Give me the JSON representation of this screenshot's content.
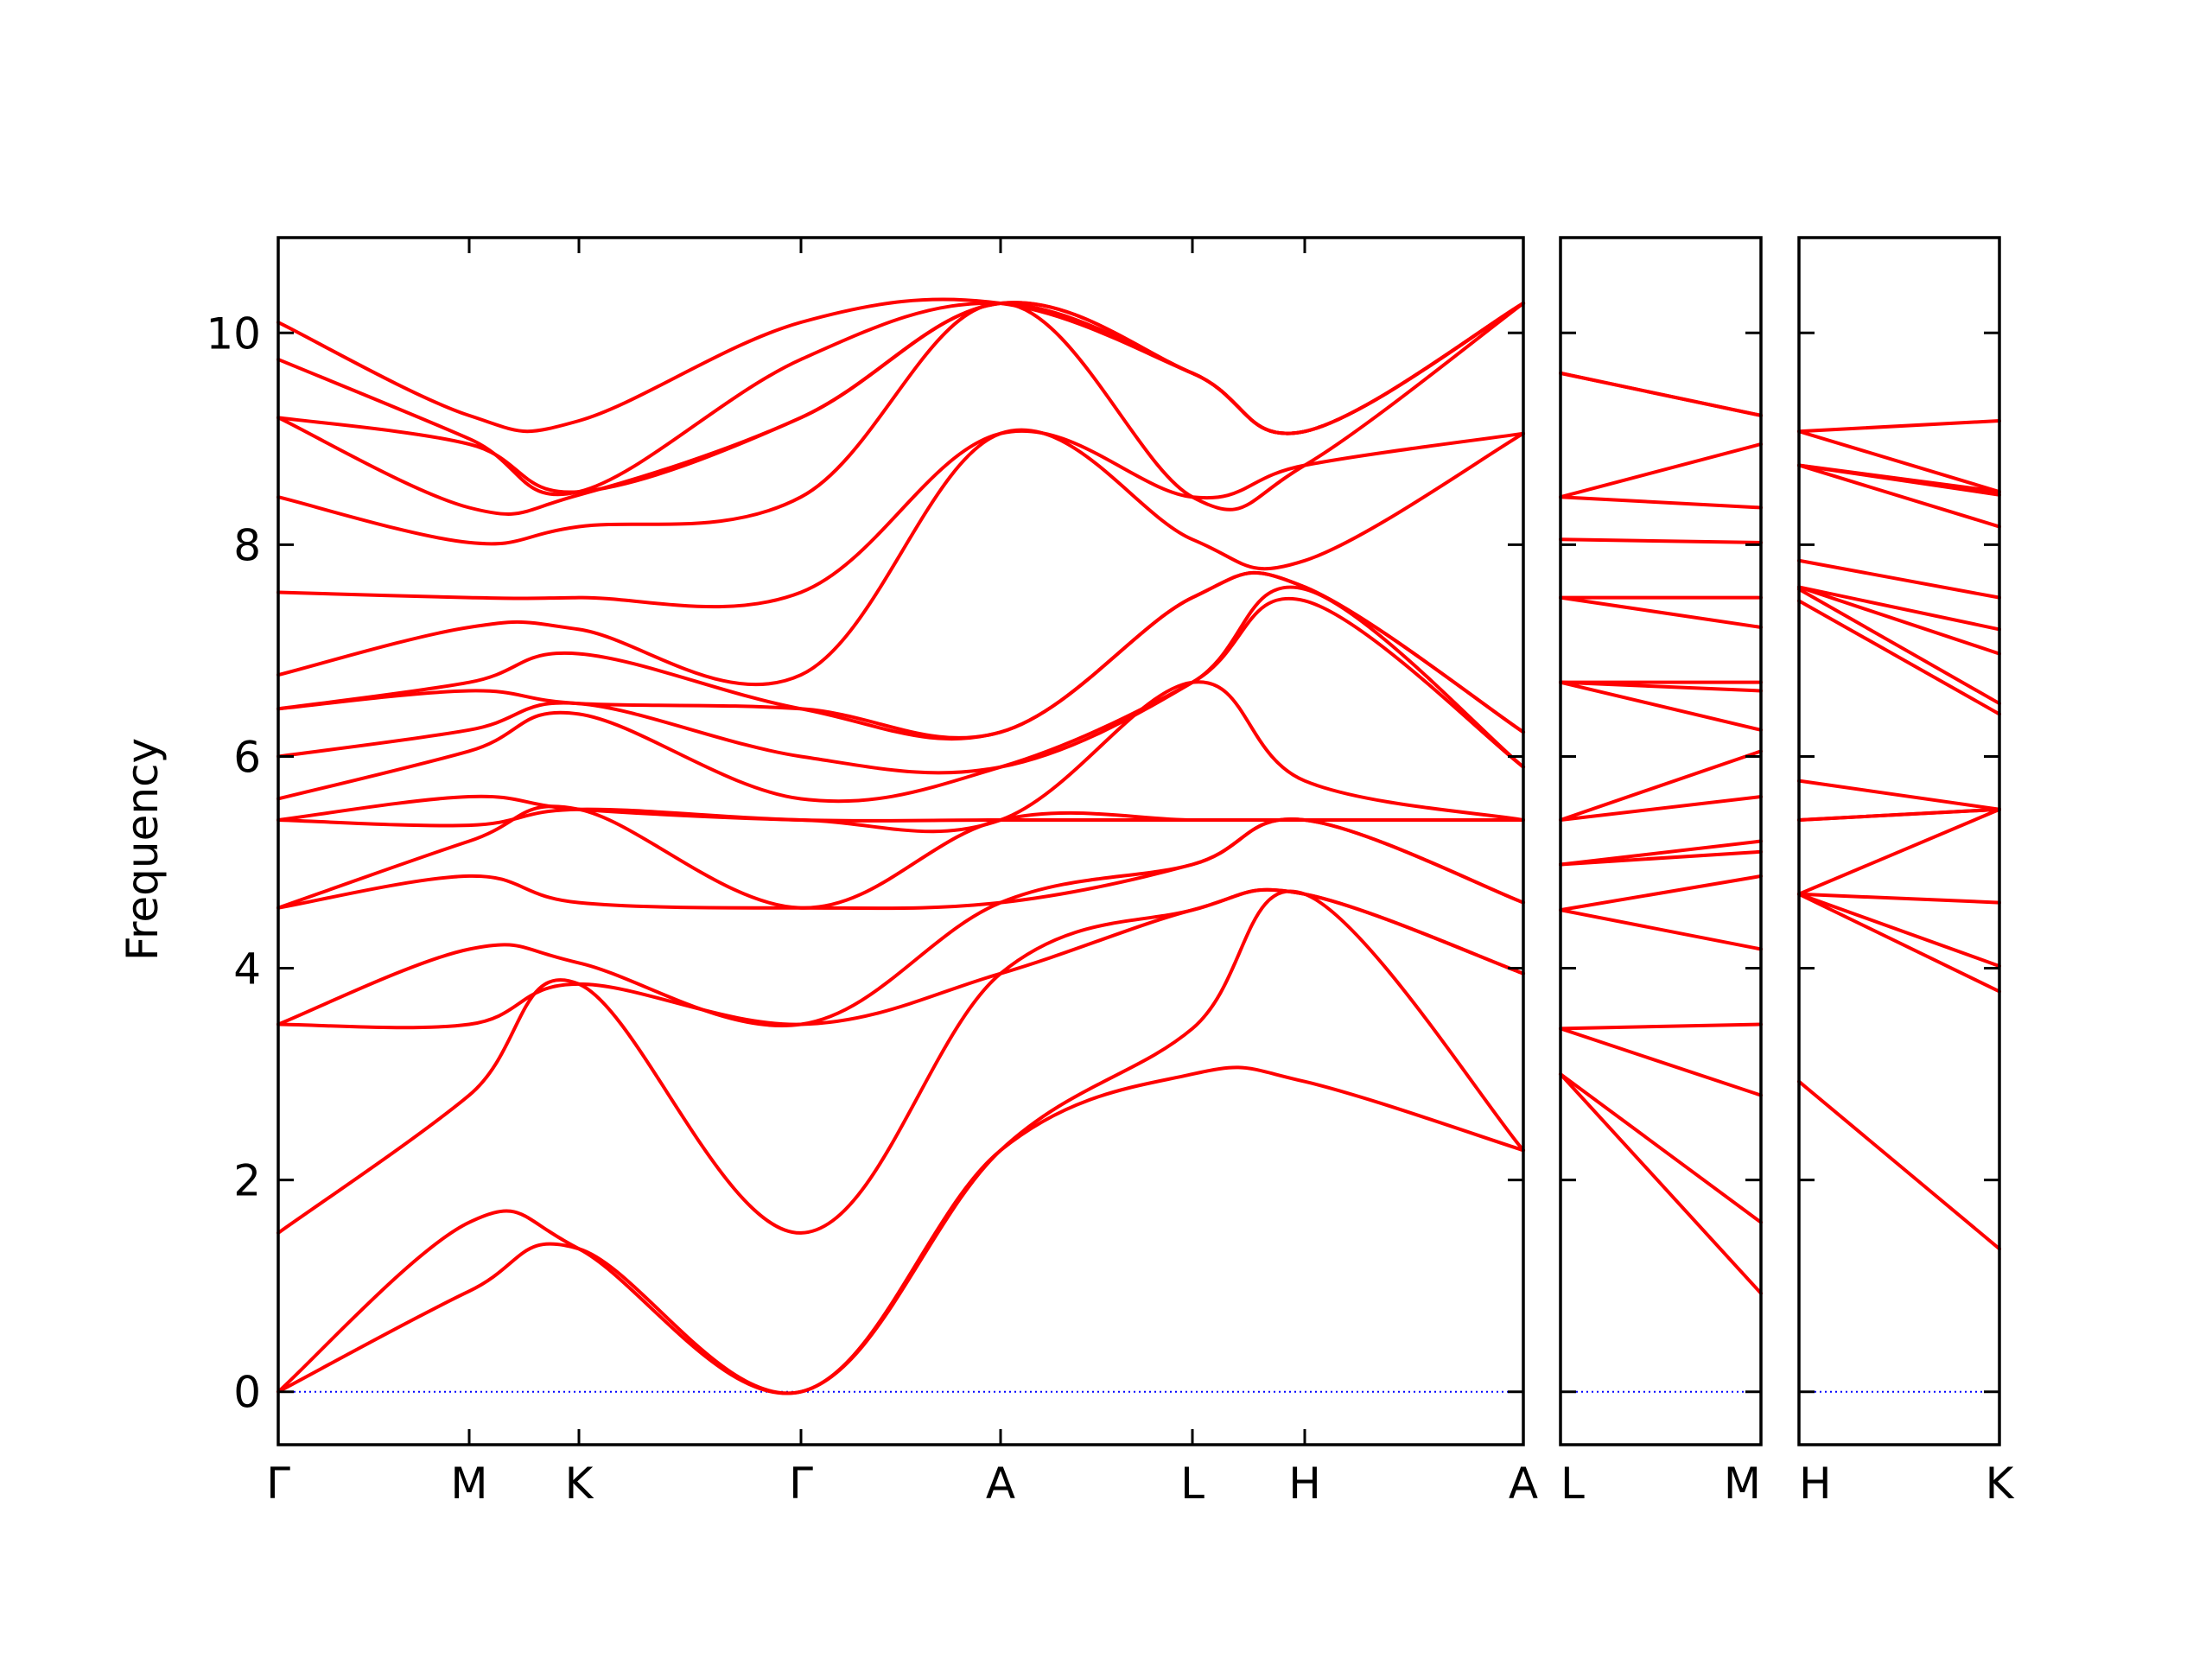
{
  "chart_data": {
    "type": "line",
    "ylabel": "Frequency",
    "ylim": [
      -0.5,
      10.9
    ],
    "yticks": [
      0,
      2,
      4,
      6,
      8,
      10
    ],
    "colors": {
      "bands": "#ff0000",
      "zero_line": "#0000ff",
      "axes": "#000000"
    },
    "grid": false,
    "panels": [
      {
        "xlabels": [
          "Γ",
          "M",
          "K",
          "Γ",
          "A",
          "L",
          "H",
          "A"
        ],
        "band_values": [
          [
            0.0,
            0.95,
            1.35,
            0.0,
            2.28,
            3.0,
            2.93,
            2.28
          ],
          [
            0.0,
            1.6,
            1.35,
            0.0,
            2.28,
            3.43,
            4.7,
            2.28
          ],
          [
            1.5,
            2.8,
            3.85,
            1.5,
            3.95,
            4.55,
            4.7,
            3.95
          ],
          [
            3.47,
            3.47,
            3.85,
            3.47,
            3.95,
            4.55,
            4.7,
            3.95
          ],
          [
            3.47,
            4.18,
            4.05,
            3.47,
            4.62,
            4.98,
            5.4,
            4.62
          ],
          [
            4.57,
            4.87,
            4.62,
            4.57,
            4.62,
            4.98,
            5.4,
            4.62
          ],
          [
            4.57,
            5.2,
            5.5,
            4.57,
            5.4,
            5.4,
            5.4,
            5.4
          ],
          [
            5.4,
            5.35,
            5.5,
            5.4,
            5.4,
            5.4,
            5.4,
            5.4
          ],
          [
            5.4,
            5.62,
            5.5,
            5.4,
            5.4,
            6.7,
            5.77,
            5.4
          ],
          [
            5.6,
            6.05,
            6.4,
            5.6,
            5.9,
            6.7,
            7.47,
            5.9
          ],
          [
            6.0,
            6.25,
            6.5,
            6.0,
            5.9,
            6.7,
            7.58,
            5.9
          ],
          [
            6.45,
            6.62,
            6.5,
            6.45,
            6.23,
            7.5,
            7.6,
            6.23
          ],
          [
            6.45,
            6.7,
            6.97,
            6.45,
            6.23,
            7.5,
            7.6,
            6.23
          ],
          [
            6.77,
            7.22,
            7.2,
            6.77,
            9.05,
            8.05,
            7.85,
            9.05
          ],
          [
            7.55,
            7.5,
            7.5,
            7.55,
            9.05,
            8.45,
            8.75,
            9.05
          ],
          [
            8.45,
            8.02,
            8.17,
            8.45,
            10.28,
            8.45,
            8.75,
            10.28
          ],
          [
            9.2,
            8.35,
            8.47,
            9.2,
            10.28,
            9.62,
            9.07,
            10.28
          ],
          [
            9.2,
            8.95,
            8.5,
            9.2,
            10.28,
            9.62,
            9.07,
            10.28
          ],
          [
            9.75,
            9.0,
            8.5,
            9.75,
            10.28,
            9.62,
            9.07,
            10.28
          ],
          [
            10.1,
            9.22,
            9.17,
            10.1,
            10.28,
            9.62,
            9.07,
            10.28
          ]
        ]
      },
      {
        "xlabels": [
          "L",
          "M"
        ],
        "band_values": [
          [
            3.0,
            0.93
          ],
          [
            3.0,
            1.6
          ],
          [
            3.43,
            2.8
          ],
          [
            3.43,
            3.47
          ],
          [
            4.55,
            4.18
          ],
          [
            4.55,
            4.87
          ],
          [
            4.98,
            5.1
          ],
          [
            4.98,
            5.2
          ],
          [
            5.4,
            5.62
          ],
          [
            5.4,
            6.05
          ],
          [
            6.7,
            6.25
          ],
          [
            6.7,
            6.62
          ],
          [
            6.7,
            6.7
          ],
          [
            7.5,
            7.22
          ],
          [
            7.5,
            7.5
          ],
          [
            8.05,
            8.02
          ],
          [
            8.45,
            8.35
          ],
          [
            8.45,
            8.95
          ],
          [
            9.62,
            9.22
          ],
          [
            9.62,
            9.22
          ]
        ]
      },
      {
        "xlabels": [
          "H",
          "K"
        ],
        "band_values": [
          [
            2.93,
            1.35
          ],
          [
            4.7,
            3.78
          ],
          [
            4.7,
            4.02
          ],
          [
            4.7,
            4.62
          ],
          [
            4.7,
            5.5
          ],
          [
            5.4,
            5.5
          ],
          [
            5.4,
            5.5
          ],
          [
            5.77,
            5.5
          ],
          [
            7.47,
            6.4
          ],
          [
            7.58,
            6.5
          ],
          [
            7.6,
            6.97
          ],
          [
            7.6,
            7.2
          ],
          [
            7.85,
            7.5
          ],
          [
            8.75,
            8.17
          ],
          [
            8.75,
            8.47
          ],
          [
            8.75,
            8.5
          ],
          [
            9.07,
            8.5
          ],
          [
            9.07,
            9.17
          ]
        ]
      }
    ]
  }
}
